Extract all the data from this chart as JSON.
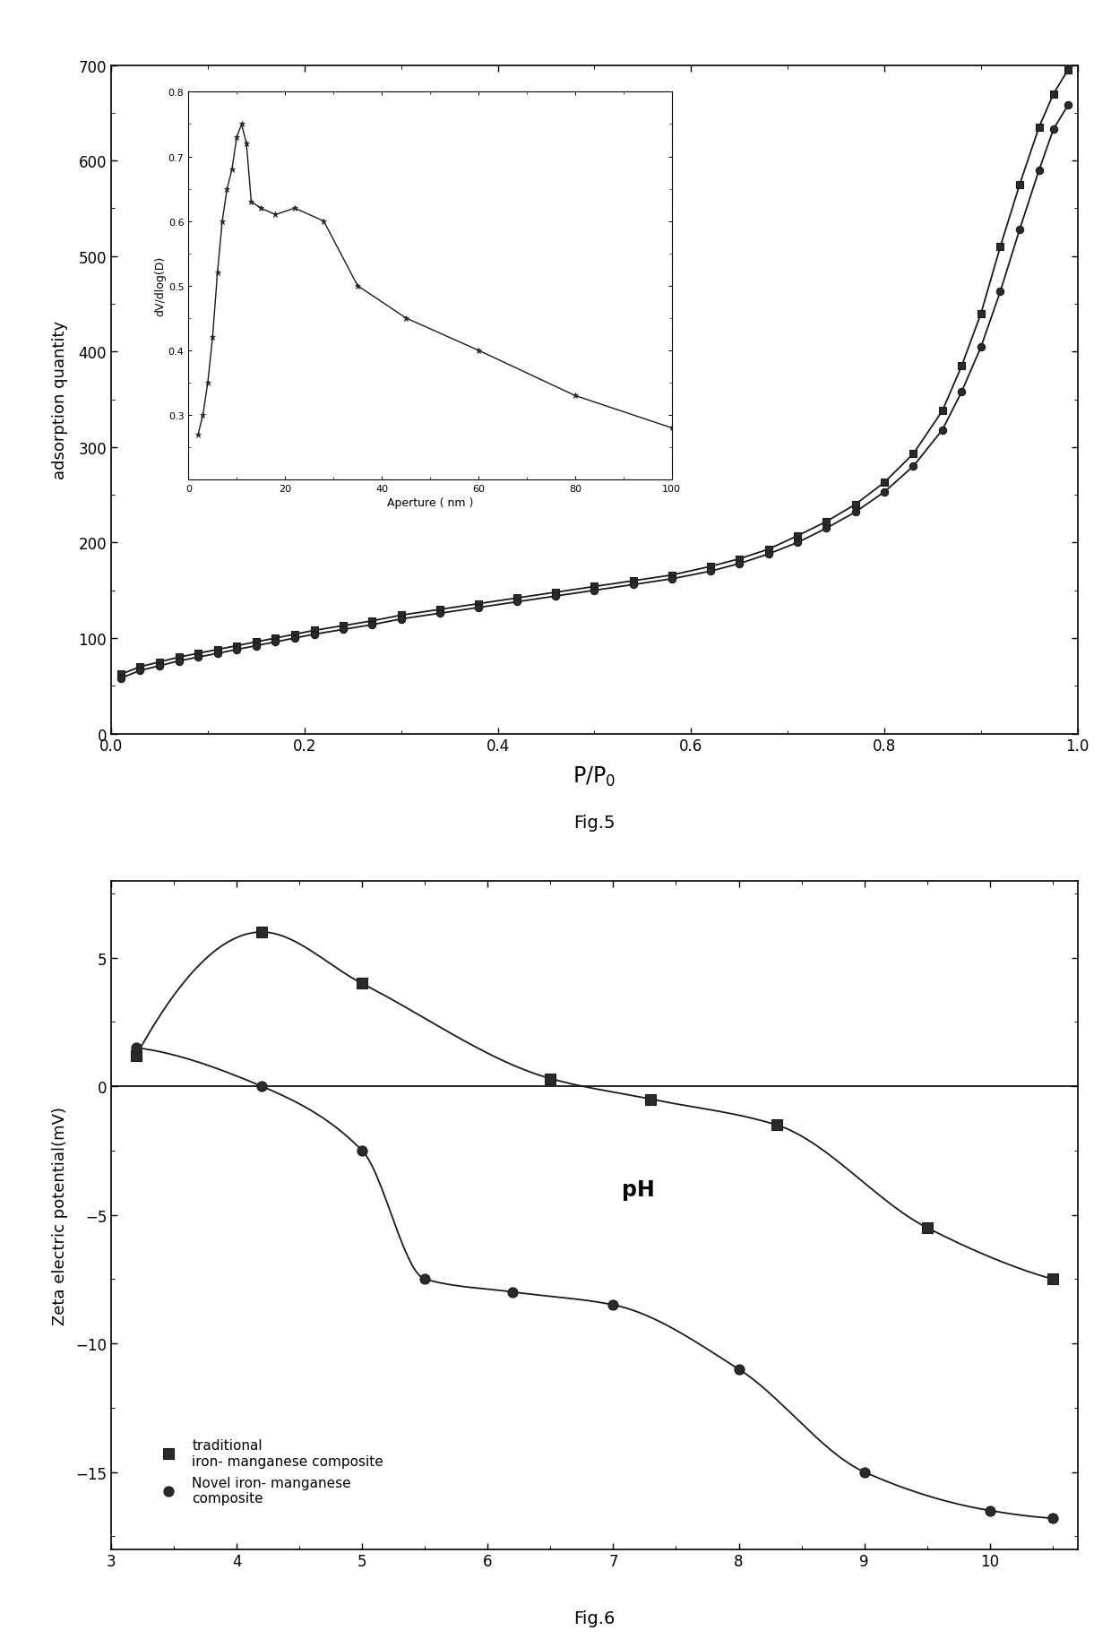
{
  "fig5": {
    "main_curve1_x": [
      0.01,
      0.03,
      0.05,
      0.07,
      0.09,
      0.11,
      0.13,
      0.15,
      0.17,
      0.19,
      0.21,
      0.24,
      0.27,
      0.3,
      0.34,
      0.38,
      0.42,
      0.46,
      0.5,
      0.54,
      0.58,
      0.62,
      0.65,
      0.68,
      0.71,
      0.74,
      0.77,
      0.8,
      0.83,
      0.86,
      0.88,
      0.9,
      0.92,
      0.94,
      0.96,
      0.975,
      0.99
    ],
    "main_curve1_y": [
      62,
      70,
      75,
      80,
      84,
      88,
      92,
      96,
      100,
      104,
      108,
      113,
      118,
      124,
      130,
      136,
      142,
      148,
      154,
      160,
      166,
      175,
      183,
      193,
      207,
      222,
      240,
      263,
      293,
      338,
      385,
      440,
      510,
      575,
      635,
      670,
      695
    ],
    "main_curve2_x": [
      0.01,
      0.03,
      0.05,
      0.07,
      0.09,
      0.11,
      0.13,
      0.15,
      0.17,
      0.19,
      0.21,
      0.24,
      0.27,
      0.3,
      0.34,
      0.38,
      0.42,
      0.46,
      0.5,
      0.54,
      0.58,
      0.62,
      0.65,
      0.68,
      0.71,
      0.74,
      0.77,
      0.8,
      0.83,
      0.86,
      0.88,
      0.9,
      0.92,
      0.94,
      0.96,
      0.975,
      0.99
    ],
    "main_curve2_y": [
      58,
      66,
      71,
      76,
      80,
      84,
      88,
      92,
      96,
      100,
      104,
      109,
      114,
      120,
      126,
      132,
      138,
      144,
      150,
      156,
      162,
      170,
      178,
      188,
      200,
      215,
      232,
      253,
      280,
      318,
      358,
      405,
      463,
      528,
      590,
      633,
      658
    ],
    "xlabel": "P/P$_0$",
    "ylabel": "adsorption quantity",
    "xlim": [
      0.0,
      1.0
    ],
    "ylim": [
      0,
      700
    ],
    "yticks": [
      0,
      100,
      200,
      300,
      400,
      500,
      600,
      700
    ],
    "xticks": [
      0.0,
      0.2,
      0.4,
      0.6,
      0.8,
      1.0
    ],
    "fig_label": "Fig.5",
    "inset": {
      "x": [
        2,
        3,
        4,
        5,
        6,
        7,
        8,
        9,
        10,
        11,
        12,
        13,
        15,
        18,
        22,
        28,
        35,
        45,
        60,
        80,
        100
      ],
      "y": [
        0.27,
        0.3,
        0.35,
        0.42,
        0.52,
        0.6,
        0.65,
        0.68,
        0.73,
        0.75,
        0.72,
        0.63,
        0.62,
        0.61,
        0.62,
        0.6,
        0.5,
        0.45,
        0.4,
        0.33,
        0.28
      ],
      "xlabel": "Aperture ( nm )",
      "ylabel": "dV/dlog(D)",
      "xlim": [
        0,
        100
      ],
      "ylim": [
        0.2,
        0.8
      ],
      "yticks": [
        0.3,
        0.4,
        0.5,
        0.6,
        0.7,
        0.8
      ],
      "xticks": [
        0,
        20,
        40,
        60,
        80,
        100
      ]
    }
  },
  "fig6": {
    "trad_x": [
      3.2,
      4.2,
      5.0,
      6.5,
      7.3,
      8.3,
      9.5,
      10.5
    ],
    "trad_y": [
      1.2,
      6.0,
      4.0,
      0.3,
      -0.5,
      -1.5,
      -5.5,
      -7.5
    ],
    "novel_x": [
      3.2,
      4.2,
      5.0,
      5.5,
      6.2,
      7.0,
      8.0,
      9.0,
      10.0,
      10.5
    ],
    "novel_y": [
      1.5,
      0.0,
      -2.5,
      -7.5,
      -8.0,
      -8.5,
      -11.0,
      -15.0,
      -16.5,
      -16.8
    ],
    "ylabel": "Zeta electric potential(mV)",
    "ph_label": "pH",
    "xlim": [
      3.0,
      10.7
    ],
    "ylim": [
      -18,
      8
    ],
    "yticks": [
      -15,
      -10,
      -5,
      0,
      5
    ],
    "xticks": [
      3,
      4,
      5,
      6,
      7,
      8,
      9,
      10
    ],
    "fig_label": "Fig.6",
    "legend1": "traditional\niron- manganese composite",
    "legend2": "Novel iron- manganese\ncomposite"
  },
  "bg_color": "#ffffff",
  "line_color": "#1a1a1a",
  "marker_color": "#2a2a2a"
}
